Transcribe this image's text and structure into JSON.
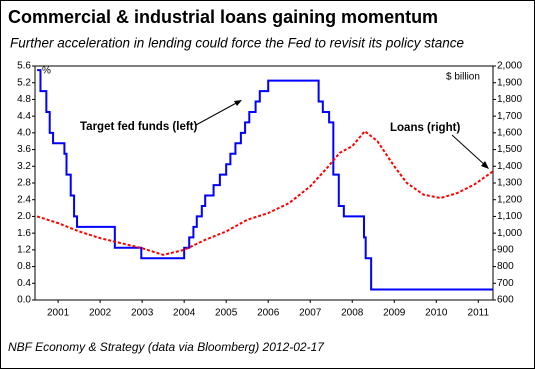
{
  "chart_data": {
    "type": "line",
    "title": "Commercial & industrial loans gaining momentum",
    "subtitle": "Further acceleration in lending could force the Fed to revisit its policy stance",
    "source": "NBF Economy & Strategy (data via Bloomberg) 2012-02-17",
    "y_label": "%",
    "y2_label": "$ billion",
    "xlim": [
      2000.95,
      2011.85
    ],
    "xticks": [
      {
        "value": 2001.5,
        "label": "2001"
      },
      {
        "value": 2002.5,
        "label": "2002"
      },
      {
        "value": 2003.5,
        "label": "2003"
      },
      {
        "value": 2004.5,
        "label": "2004"
      },
      {
        "value": 2005.5,
        "label": "2005"
      },
      {
        "value": 2006.5,
        "label": "2006"
      },
      {
        "value": 2007.5,
        "label": "2007"
      },
      {
        "value": 2008.5,
        "label": "2008"
      },
      {
        "value": 2009.5,
        "label": "2009"
      },
      {
        "value": 2010.5,
        "label": "2010"
      },
      {
        "value": 2011.5,
        "label": "2011"
      }
    ],
    "ylim": [
      0,
      5.6
    ],
    "yticks": [
      {
        "value": 0,
        "label": "0.0"
      },
      0.4,
      0.8,
      1.2,
      1.6,
      {
        "value": 2,
        "label": "2.0"
      },
      2.4,
      2.8,
      3.2,
      3.6,
      {
        "value": 4,
        "label": "4.0"
      },
      4.4,
      4.8,
      5.2,
      5.6
    ],
    "y2lim": [
      600,
      2000
    ],
    "y2ticks": [
      600,
      700,
      800,
      900,
      {
        "value": 1000,
        "label": "1,000"
      },
      {
        "value": 1100,
        "label": "1,100"
      },
      {
        "value": 1200,
        "label": "1,200"
      },
      {
        "value": 1300,
        "label": "1,300"
      },
      {
        "value": 1400,
        "label": "1,400"
      },
      {
        "value": 1500,
        "label": "1,500"
      },
      {
        "value": 1600,
        "label": "1,600"
      },
      {
        "value": 1700,
        "label": "1,700"
      },
      {
        "value": 1800,
        "label": "1,800"
      },
      {
        "value": 1900,
        "label": "1,900"
      },
      {
        "value": 2000,
        "label": "2,000"
      }
    ],
    "series": [
      {
        "name": "Target fed funds (left)",
        "color": "#0000ff",
        "step": true,
        "style": "solid",
        "x": [
          2001.0,
          2001.08,
          2001.22,
          2001.3,
          2001.38,
          2001.65,
          2001.7,
          2001.8,
          2001.88,
          2001.95,
          2002.85,
          2003.48,
          2004.5,
          2004.62,
          2004.72,
          2004.8,
          2004.92,
          2005.0,
          2005.2,
          2005.35,
          2005.5,
          2005.6,
          2005.72,
          2005.85,
          2005.95,
          2006.05,
          2006.2,
          2006.3,
          2006.5,
          2007.7,
          2007.8,
          2007.95,
          2008.05,
          2008.18,
          2008.3,
          2008.78,
          2008.82,
          2008.95,
          2011.85
        ],
        "values": [
          5.5,
          5.0,
          4.5,
          4.0,
          3.75,
          3.5,
          3.0,
          2.5,
          2.0,
          1.75,
          1.25,
          1.0,
          1.25,
          1.5,
          1.75,
          2.0,
          2.25,
          2.5,
          2.75,
          3.0,
          3.25,
          3.5,
          3.75,
          4.0,
          4.25,
          4.5,
          4.75,
          5.0,
          5.25,
          4.75,
          4.5,
          4.25,
          3.0,
          2.25,
          2.0,
          1.5,
          1.0,
          0.25,
          0.25
        ]
      },
      {
        "name": "Loans (right)",
        "color": "#ff0000",
        "axis": "y2",
        "step": false,
        "style": "dotted",
        "x": [
          2001.0,
          2001.5,
          2002.0,
          2002.5,
          2003.0,
          2003.5,
          2004.0,
          2004.5,
          2005.0,
          2005.5,
          2006.0,
          2006.5,
          2007.0,
          2007.5,
          2007.9,
          2008.2,
          2008.5,
          2008.8,
          2009.1,
          2009.5,
          2009.8,
          2010.2,
          2010.6,
          2011.0,
          2011.4,
          2011.85
        ],
        "values": [
          1100,
          1060,
          1010,
          970,
          940,
          910,
          870,
          900,
          960,
          1010,
          1080,
          1120,
          1180,
          1280,
          1390,
          1480,
          1520,
          1610,
          1550,
          1400,
          1300,
          1230,
          1210,
          1240,
          1290,
          1370
        ]
      }
    ]
  }
}
